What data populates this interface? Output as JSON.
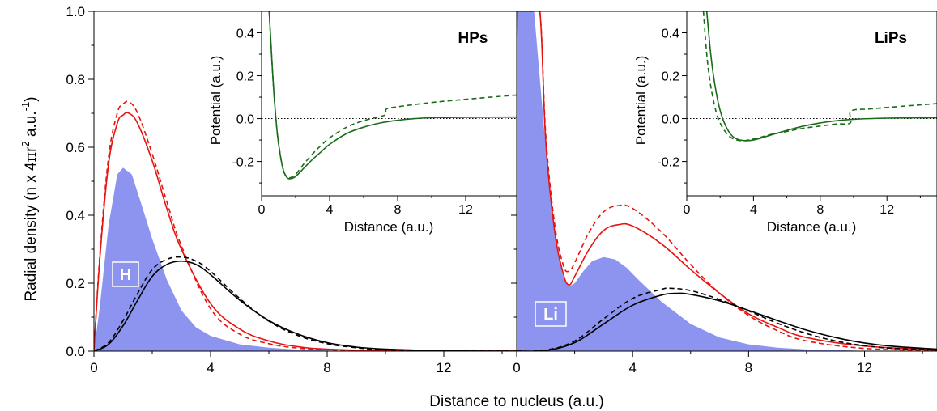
{
  "colors": {
    "fill": "#8c94f0",
    "red": "#e8120e",
    "black": "#000000",
    "green": "#1a6b1a",
    "label_bg": "#8c94f0"
  },
  "chart_data": [
    {
      "id": "main-left",
      "type": "line",
      "ylabel_parts": [
        "Radial density (n x 4",
        "π",
        "r",
        "2",
        " a.u.",
        "-1",
        ")"
      ],
      "xlim": [
        0,
        14.5
      ],
      "ylim": [
        0,
        1.0
      ],
      "x_ticks": [
        0,
        4,
        8,
        12
      ],
      "x_tick_labels": [
        "0",
        "4",
        "8",
        "12"
      ],
      "y_ticks": [
        0.0,
        0.2,
        0.4,
        0.6,
        0.8,
        1.0
      ],
      "y_tick_labels": [
        "0.0",
        "0.2",
        "0.4",
        "0.6",
        "0.8",
        "1.0"
      ],
      "atom_label": "H",
      "series": [
        {
          "style": "filled",
          "color": "fill",
          "x": [
            0,
            0.2,
            0.5,
            0.8,
            1.0,
            1.3,
            1.6,
            2.0,
            2.5,
            3.0,
            3.5,
            4.0,
            5.0,
            6.0,
            7.0,
            8.0,
            10.0,
            14.5
          ],
          "y": [
            0,
            0.13,
            0.37,
            0.52,
            0.54,
            0.52,
            0.44,
            0.33,
            0.21,
            0.12,
            0.07,
            0.045,
            0.02,
            0.01,
            0.004,
            0.002,
            0.0,
            0.0
          ]
        },
        {
          "style": "solid",
          "color": "red",
          "x": [
            0,
            0.2,
            0.5,
            0.8,
            1.0,
            1.2,
            1.5,
            2.0,
            2.5,
            3.0,
            4.0,
            5.0,
            6.0,
            7.0,
            8.0,
            10.0,
            14.5
          ],
          "y": [
            0,
            0.27,
            0.55,
            0.67,
            0.695,
            0.7,
            0.67,
            0.56,
            0.42,
            0.3,
            0.14,
            0.065,
            0.03,
            0.013,
            0.006,
            0.001,
            0.0
          ]
        },
        {
          "style": "dashed",
          "color": "red",
          "x": [
            0,
            0.2,
            0.5,
            0.8,
            1.0,
            1.2,
            1.5,
            2.0,
            2.5,
            3.0,
            4.0,
            5.0,
            6.0,
            7.0,
            8.0,
            10.0,
            14.5
          ],
          "y": [
            0,
            0.28,
            0.57,
            0.7,
            0.727,
            0.733,
            0.7,
            0.58,
            0.44,
            0.31,
            0.125,
            0.05,
            0.022,
            0.009,
            0.004,
            0.001,
            0.0
          ]
        },
        {
          "style": "solid",
          "color": "black",
          "x": [
            0,
            0.5,
            1.0,
            1.5,
            2.0,
            2.5,
            3.0,
            3.5,
            4.0,
            5.0,
            6.0,
            7.0,
            8.0,
            9.0,
            10.0,
            12.0,
            14.5
          ],
          "y": [
            0,
            0.02,
            0.075,
            0.15,
            0.22,
            0.255,
            0.265,
            0.255,
            0.225,
            0.15,
            0.09,
            0.05,
            0.025,
            0.012,
            0.006,
            0.001,
            0.0
          ]
        },
        {
          "style": "dashed",
          "color": "black",
          "x": [
            0,
            0.5,
            1.0,
            1.5,
            2.0,
            2.5,
            3.0,
            3.5,
            4.0,
            5.0,
            6.0,
            7.0,
            8.0,
            9.0,
            10.0,
            12.0,
            14.5
          ],
          "y": [
            0,
            0.025,
            0.09,
            0.17,
            0.24,
            0.27,
            0.277,
            0.265,
            0.235,
            0.155,
            0.088,
            0.046,
            0.022,
            0.01,
            0.004,
            0.001,
            0.0
          ]
        }
      ]
    },
    {
      "id": "main-right",
      "type": "line",
      "xlim": [
        0,
        14.5
      ],
      "ylim": [
        0,
        1.0
      ],
      "x_ticks": [
        0,
        4,
        8,
        12
      ],
      "x_tick_labels": [
        "0",
        "4",
        "8",
        "12"
      ],
      "y_ticks": [
        0.0,
        0.2,
        0.4,
        0.6,
        0.8,
        1.0
      ],
      "xlabel": "Distance to nucleus (a.u.)",
      "atom_label": "Li",
      "series": [
        {
          "style": "filled",
          "color": "fill",
          "x": [
            0,
            0.01,
            0.3,
            0.6,
            1.0,
            1.3,
            1.6,
            1.8,
            2.0,
            2.3,
            2.6,
            3.0,
            3.4,
            3.8,
            4.2,
            5.0,
            6.0,
            7.0,
            8.0,
            9.0,
            10.0,
            12.0,
            14.5
          ],
          "y": [
            0,
            1.0,
            1.0,
            1.0,
            0.6,
            0.35,
            0.22,
            0.19,
            0.2,
            0.235,
            0.265,
            0.277,
            0.27,
            0.245,
            0.21,
            0.145,
            0.08,
            0.04,
            0.02,
            0.01,
            0.005,
            0.001,
            0.0
          ]
        },
        {
          "style": "solid",
          "color": "red",
          "x": [
            0,
            0.03,
            0.5,
            0.8,
            1.0,
            1.3,
            1.6,
            1.8,
            2.0,
            2.5,
            3.0,
            3.5,
            4.0,
            5.0,
            6.0,
            7.0,
            8.0,
            9.0,
            10.0,
            12.0,
            14.5
          ],
          "y": [
            0,
            1.0,
            1.0,
            1.0,
            0.62,
            0.36,
            0.23,
            0.195,
            0.22,
            0.3,
            0.355,
            0.372,
            0.368,
            0.315,
            0.24,
            0.17,
            0.11,
            0.07,
            0.04,
            0.015,
            0.004
          ]
        },
        {
          "style": "dashed",
          "color": "red",
          "x": [
            0,
            0.03,
            0.5,
            0.8,
            1.0,
            1.3,
            1.6,
            1.8,
            2.0,
            2.5,
            3.0,
            3.5,
            4.0,
            5.0,
            6.0,
            7.0,
            8.0,
            9.0,
            10.0,
            12.0,
            14.5
          ],
          "y": [
            0,
            1.0,
            1.0,
            1.0,
            0.64,
            0.38,
            0.255,
            0.235,
            0.26,
            0.35,
            0.41,
            0.428,
            0.42,
            0.35,
            0.255,
            0.17,
            0.105,
            0.06,
            0.03,
            0.008,
            0.002
          ]
        },
        {
          "style": "solid",
          "color": "black",
          "x": [
            0,
            1.0,
            2.0,
            3.0,
            4.0,
            5.0,
            5.5,
            6.0,
            7.0,
            8.0,
            9.0,
            10.0,
            11.0,
            12.0,
            13.0,
            14.5
          ],
          "y": [
            0,
            0.002,
            0.025,
            0.08,
            0.135,
            0.165,
            0.17,
            0.167,
            0.148,
            0.12,
            0.09,
            0.062,
            0.04,
            0.024,
            0.014,
            0.006
          ]
        },
        {
          "style": "dashed",
          "color": "black",
          "x": [
            0,
            1.0,
            2.0,
            3.0,
            4.0,
            5.0,
            5.3,
            6.0,
            7.0,
            8.0,
            9.0,
            10.0,
            11.0,
            12.0,
            13.0,
            14.5
          ],
          "y": [
            0,
            0.003,
            0.03,
            0.095,
            0.155,
            0.182,
            0.185,
            0.178,
            0.152,
            0.118,
            0.082,
            0.052,
            0.03,
            0.016,
            0.008,
            0.003
          ]
        }
      ]
    },
    {
      "id": "inset-left",
      "type": "line",
      "title": "HPs",
      "xlabel": "Distance (a.u.)",
      "ylabel": "Potential (a.u.)",
      "xlim": [
        0,
        15
      ],
      "ylim": [
        -0.36,
        0.5
      ],
      "x_ticks": [
        0,
        4,
        8,
        12
      ],
      "x_tick_labels": [
        "0",
        "4",
        "8",
        "12"
      ],
      "y_ticks": [
        -0.2,
        0.0,
        0.2,
        0.4
      ],
      "y_tick_labels": [
        "-0.2",
        "0.0",
        "0.2",
        "0.4"
      ],
      "series": [
        {
          "style": "solid",
          "color": "green",
          "x": [
            0.45,
            0.55,
            0.7,
            0.9,
            1.1,
            1.3,
            1.5,
            1.7,
            2.0,
            2.5,
            3.0,
            3.5,
            4.0,
            5.0,
            6.0,
            7.0,
            8.0,
            9.0,
            10.0,
            12.0,
            15.0
          ],
          "y": [
            0.5,
            0.35,
            0.15,
            -0.05,
            -0.17,
            -0.245,
            -0.275,
            -0.28,
            -0.27,
            -0.23,
            -0.19,
            -0.155,
            -0.12,
            -0.07,
            -0.04,
            -0.02,
            -0.008,
            0.0,
            0.004,
            0.006,
            0.007
          ]
        },
        {
          "style": "dashed",
          "color": "green",
          "x": [
            0.45,
            0.55,
            0.7,
            0.9,
            1.1,
            1.3,
            1.5,
            1.7,
            2.0,
            2.5,
            3.0,
            3.5,
            4.0,
            5.0,
            6.0,
            7.0,
            7.3,
            7.35,
            8.0,
            10.0,
            12.0,
            15.0
          ],
          "y": [
            0.5,
            0.35,
            0.15,
            -0.05,
            -0.17,
            -0.245,
            -0.272,
            -0.275,
            -0.26,
            -0.21,
            -0.165,
            -0.125,
            -0.09,
            -0.04,
            -0.01,
            0.01,
            0.02,
            0.045,
            0.055,
            0.075,
            0.09,
            0.11
          ]
        }
      ]
    },
    {
      "id": "inset-right",
      "type": "line",
      "title": "LiPs",
      "xlabel": "Distance (a.u.)",
      "ylabel": "Potential (a.u.)",
      "xlim": [
        0,
        15
      ],
      "ylim": [
        -0.36,
        0.5
      ],
      "x_ticks": [
        0,
        4,
        8,
        12
      ],
      "x_tick_labels": [
        "0",
        "4",
        "8",
        "12"
      ],
      "y_ticks": [
        -0.2,
        0.0,
        0.2,
        0.4
      ],
      "y_tick_labels": [
        "-0.2",
        "0.0",
        "0.2",
        "0.4"
      ],
      "series": [
        {
          "style": "solid",
          "color": "green",
          "x": [
            1.2,
            1.4,
            1.6,
            1.9,
            2.2,
            2.6,
            3.0,
            3.5,
            4.0,
            4.5,
            5.0,
            6.0,
            7.0,
            8.0,
            9.0,
            10.0,
            12.0,
            15.0
          ],
          "y": [
            0.5,
            0.33,
            0.2,
            0.07,
            -0.01,
            -0.07,
            -0.095,
            -0.103,
            -0.1,
            -0.09,
            -0.078,
            -0.055,
            -0.035,
            -0.02,
            -0.01,
            -0.003,
            0.002,
            0.004
          ]
        },
        {
          "style": "dashed",
          "color": "green",
          "x": [
            1.0,
            1.2,
            1.4,
            1.7,
            2.0,
            2.4,
            2.8,
            3.3,
            3.7,
            4.2,
            5.0,
            6.0,
            7.0,
            8.0,
            9.0,
            9.8,
            9.85,
            11.0,
            13.0,
            15.0
          ],
          "y": [
            0.5,
            0.3,
            0.17,
            0.05,
            -0.02,
            -0.07,
            -0.095,
            -0.103,
            -0.1,
            -0.092,
            -0.075,
            -0.06,
            -0.045,
            -0.035,
            -0.025,
            -0.02,
            0.035,
            0.045,
            0.058,
            0.07
          ]
        }
      ]
    }
  ]
}
